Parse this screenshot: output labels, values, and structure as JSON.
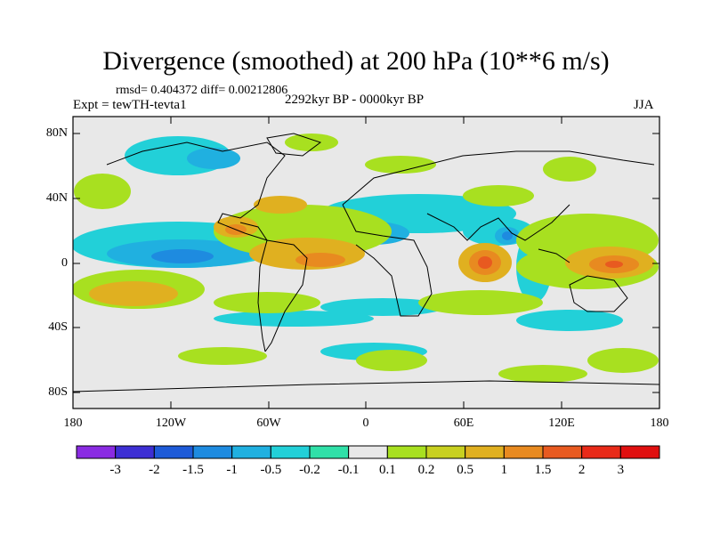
{
  "title": "Divergence (smoothed) at 200 hPa (10**6 m/s)",
  "stats": "rmsd= 0.404372 diff= 0.00212806",
  "experiment": "Expt = tewTH-tevta1",
  "period": "2292kyr BP - 0000kyr BP",
  "season": "JJA",
  "map": {
    "y_tick_labels": [
      "80N",
      "40N",
      "0",
      "40S",
      "80S"
    ],
    "x_tick_labels": [
      "180",
      "120W",
      "60W",
      "0",
      "60E",
      "120E",
      "180"
    ],
    "lon_range": [
      -180,
      180
    ],
    "lat_range": [
      -90,
      90
    ]
  },
  "colorbar": {
    "labels": [
      "-3",
      "-2",
      "-1.5",
      "-1",
      "-0.5",
      "-0.2",
      "-0.1",
      "0.1",
      "0.2",
      "0.5",
      "1",
      "1.5",
      "2",
      "3"
    ],
    "colors": [
      "#8a2be2",
      "#3d2fd4",
      "#1e5bd8",
      "#1e8be0",
      "#20b0e0",
      "#22d0d8",
      "#30e0a8",
      "#e8e8e8",
      "#a8e020",
      "#c8d020",
      "#e0b020",
      "#e88a20",
      "#e85a20",
      "#e82a18",
      "#e01010"
    ]
  }
}
